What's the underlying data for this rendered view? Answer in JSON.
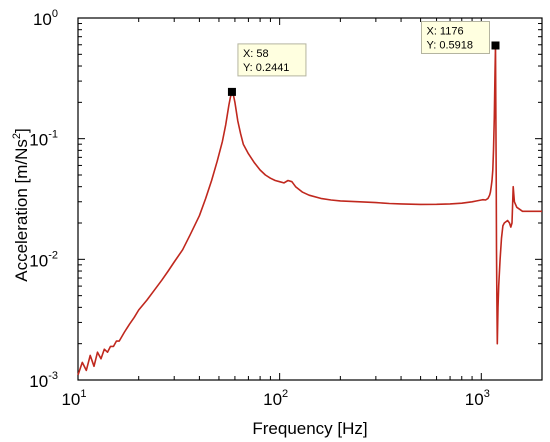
{
  "chart_data": {
    "type": "line",
    "xlabel": "Frequency [Hz]",
    "ylabel_main": "Acceleration [m/Ns",
    "ylabel_sup": "2",
    "ylabel_tail": "]",
    "x_scale": "log",
    "y_scale": "log",
    "xlim": [
      10,
      2000
    ],
    "ylim": [
      0.001,
      1
    ],
    "x_ticks": [
      {
        "value": 10,
        "base": "10",
        "exp": "1"
      },
      {
        "value": 100,
        "base": "10",
        "exp": "2"
      },
      {
        "value": 1000,
        "base": "10",
        "exp": "3"
      }
    ],
    "y_ticks": [
      {
        "value": 0.001,
        "base": "10",
        "exp": "-3"
      },
      {
        "value": 0.01,
        "base": "10",
        "exp": "-2"
      },
      {
        "value": 0.1,
        "base": "10",
        "exp": "-1"
      },
      {
        "value": 1,
        "base": "10",
        "exp": "0"
      }
    ],
    "grid": false,
    "line_color": "#c0281e",
    "marker_color": "#000000",
    "tooltip_bg": "#ffffe0",
    "series": [
      {
        "x": [
          10,
          10.5,
          11,
          11.5,
          12,
          12.5,
          13,
          13.5,
          14,
          14.5,
          15,
          15.5,
          16,
          17,
          18,
          19,
          20,
          22,
          24,
          26,
          28,
          30,
          33,
          36,
          40,
          43,
          46,
          49,
          52,
          54,
          56,
          57,
          58,
          59,
          60,
          62,
          64,
          66,
          70,
          75,
          80,
          85,
          90,
          95,
          100,
          105,
          110,
          115,
          120,
          130,
          140,
          160,
          180,
          200,
          250,
          300,
          350,
          400,
          500,
          600,
          700,
          800,
          900,
          950,
          1000,
          1020,
          1050,
          1080,
          1100,
          1110,
          1120,
          1130,
          1140,
          1150,
          1160,
          1170,
          1176,
          1180,
          1185,
          1190,
          1195,
          1200,
          1210,
          1220,
          1240,
          1260,
          1280,
          1300,
          1350,
          1380,
          1400,
          1420,
          1440,
          1460,
          1500,
          1550,
          1600,
          1700,
          1800,
          1900,
          2000
        ],
        "y": [
          0.0011,
          0.0014,
          0.0012,
          0.0016,
          0.0013,
          0.0017,
          0.0015,
          0.0018,
          0.0017,
          0.0019,
          0.0019,
          0.0021,
          0.0021,
          0.0025,
          0.0029,
          0.0033,
          0.0038,
          0.0046,
          0.0056,
          0.0067,
          0.008,
          0.0095,
          0.012,
          0.016,
          0.023,
          0.032,
          0.045,
          0.065,
          0.095,
          0.13,
          0.19,
          0.22,
          0.2441,
          0.23,
          0.2,
          0.14,
          0.11,
          0.09,
          0.075,
          0.063,
          0.055,
          0.05,
          0.047,
          0.045,
          0.044,
          0.043,
          0.045,
          0.044,
          0.04,
          0.036,
          0.034,
          0.032,
          0.031,
          0.0305,
          0.03,
          0.0295,
          0.029,
          0.0288,
          0.0285,
          0.0286,
          0.0288,
          0.0292,
          0.03,
          0.0305,
          0.031,
          0.0312,
          0.031,
          0.032,
          0.034,
          0.036,
          0.04,
          0.045,
          0.055,
          0.08,
          0.15,
          0.35,
          0.5918,
          0.2,
          0.05,
          0.012,
          0.0045,
          0.002,
          0.004,
          0.006,
          0.01,
          0.015,
          0.019,
          0.02,
          0.021,
          0.02,
          0.0185,
          0.02,
          0.04,
          0.03,
          0.027,
          0.026,
          0.025,
          0.025,
          0.025,
          0.025,
          0.025
        ]
      }
    ],
    "annotations": [
      {
        "x": 58,
        "y": 0.2441,
        "line1": "X: 58",
        "line2": "Y: 0.2441",
        "side": "right"
      },
      {
        "x": 1176,
        "y": 0.5918,
        "line1": "X: 1176",
        "line2": "Y: 0.5918",
        "side": "left"
      }
    ]
  }
}
